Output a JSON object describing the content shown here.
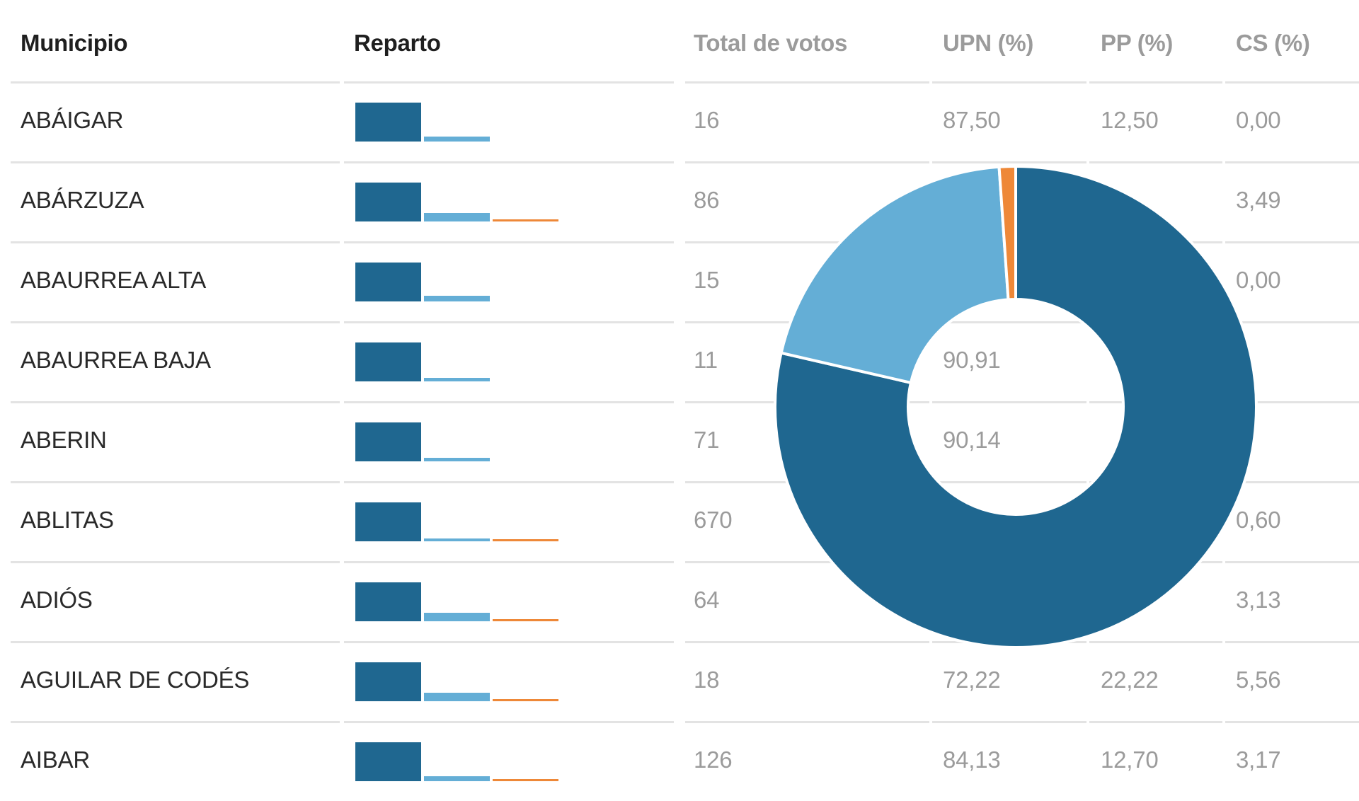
{
  "colors": {
    "upn": "#1f6790",
    "pp": "#64aed6",
    "cs": "#ee8838",
    "header_dark": "#1f1f1f",
    "header_gray": "#9b9b9b",
    "separator": "#e3e3e3"
  },
  "table": {
    "headers": [
      "Municipio",
      "Reparto",
      "Total de votos",
      "UPN (%)",
      "PP (%)",
      "CS (%)"
    ],
    "rows": [
      {
        "municipio": "ABÁIGAR",
        "total": "16",
        "upn": "87,50",
        "pp": "12,50",
        "cs": "0,00"
      },
      {
        "municipio": "ABÁRZUZA",
        "total": "86",
        "upn": "",
        "pp": "",
        "cs": "3,49"
      },
      {
        "municipio": "ABAURREA ALTA",
        "total": "15",
        "upn": "",
        "pp": "",
        "cs": "0,00"
      },
      {
        "municipio": "ABAURREA BAJA",
        "total": "11",
        "upn": "90,91",
        "pp": "",
        "cs": ""
      },
      {
        "municipio": "ABERIN",
        "total": "71",
        "upn": "90,14",
        "pp": "",
        "cs": ""
      },
      {
        "municipio": "ABLITAS",
        "total": "670",
        "upn": "",
        "pp": "",
        "cs": "0,60"
      },
      {
        "municipio": "ADIÓS",
        "total": "64",
        "upn": "",
        "pp": "",
        "cs": "3,13"
      },
      {
        "municipio": "AGUILAR DE CODÉS",
        "total": "18",
        "upn": "72,22",
        "pp": "22,22",
        "cs": "5,56"
      },
      {
        "municipio": "AIBAR",
        "total": "126",
        "upn": "84,13",
        "pp": "12,70",
        "cs": "3,17"
      }
    ]
  },
  "chart_data": [
    {
      "type": "bar",
      "description_role": "Reparto column mini bar charts (UPN, PP, CS shares per municipality)",
      "categories": [
        "ABÁIGAR",
        "ABÁRZUZA",
        "ABAURREA ALTA",
        "ABAURREA BAJA",
        "ABERIN",
        "ABLITAS",
        "ADIÓS",
        "AGUILAR DE CODÉS",
        "AIBAR"
      ],
      "series": [
        {
          "key": "upn",
          "values": [
            87.5,
            75,
            85,
            90.91,
            90.14,
            92,
            75,
            72.22,
            84.13
          ]
        },
        {
          "key": "pp",
          "values": [
            12.5,
            21.5,
            15,
            9.09,
            9.86,
            7.4,
            21.9,
            22.22,
            12.7
          ]
        },
        {
          "key": "cs",
          "values": [
            0,
            3.49,
            0,
            0,
            0,
            0.6,
            3.13,
            5.56,
            3.17
          ]
        }
      ],
      "ylim": [
        0,
        100
      ]
    },
    {
      "type": "pie",
      "variant": "donut",
      "slices": [
        {
          "key": "upn",
          "value": 78.6
        },
        {
          "key": "pp",
          "value": 20.3
        },
        {
          "key": "cs",
          "value": 1.1
        }
      ]
    }
  ]
}
